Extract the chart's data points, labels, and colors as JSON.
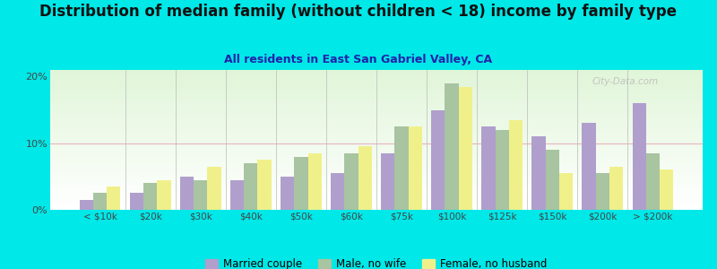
{
  "title": "Distribution of median family (without children < 18) income by family type",
  "subtitle": "All residents in East San Gabriel Valley, CA",
  "categories": [
    "< $10k",
    "$20k",
    "$30k",
    "$40k",
    "$50k",
    "$60k",
    "$75k",
    "$100k",
    "$125k",
    "$150k",
    "$200k",
    "> $200k"
  ],
  "married_couple": [
    1.5,
    2.5,
    5.0,
    4.5,
    5.0,
    5.5,
    8.5,
    15.0,
    12.5,
    11.0,
    13.0,
    16.0
  ],
  "male_no_wife": [
    2.5,
    4.0,
    4.5,
    7.0,
    8.0,
    8.5,
    12.5,
    19.0,
    12.0,
    9.0,
    5.5,
    8.5
  ],
  "female_no_husband": [
    3.5,
    4.5,
    6.5,
    7.5,
    8.5,
    9.5,
    12.5,
    18.5,
    13.5,
    5.5,
    6.5,
    6.0
  ],
  "color_married": "#b09fcc",
  "color_male": "#a8c4a0",
  "color_female": "#f0f08a",
  "bg_outer": "#00e8e8",
  "ylim": [
    0,
    21
  ],
  "yticks": [
    0,
    10,
    20
  ],
  "title_fontsize": 12,
  "subtitle_fontsize": 9,
  "watermark": "City-Data.com"
}
